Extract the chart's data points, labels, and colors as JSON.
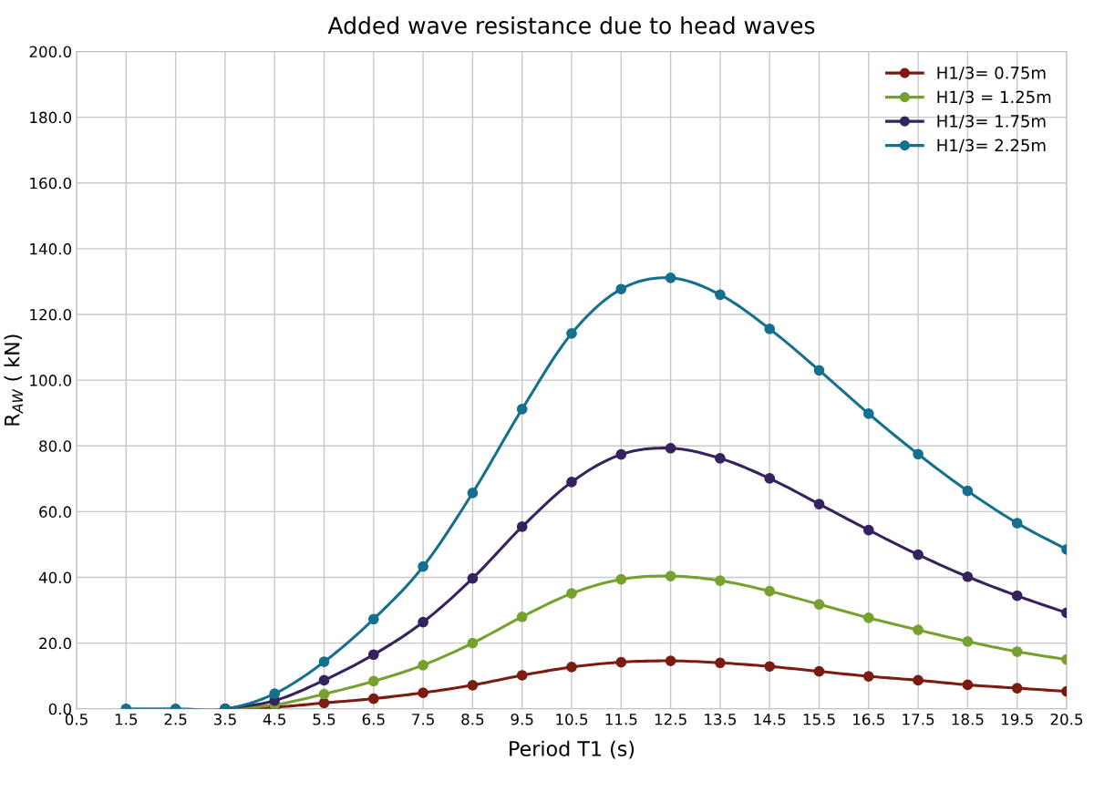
{
  "chart_data": {
    "type": "line",
    "title": "Added wave resistance due to head waves",
    "xlabel": "Period T1 (s)",
    "ylabel": "R$_{AW}$ ( kN)",
    "x": [
      1.5,
      2.5,
      3.5,
      4.5,
      5.5,
      6.5,
      7.5,
      8.5,
      9.5,
      10.5,
      11.5,
      12.5,
      13.5,
      14.5,
      15.5,
      16.5,
      17.5,
      18.5,
      19.5,
      20.5
    ],
    "series": [
      {
        "name": "H1/3= 0.75m",
        "color": "#7b1c12",
        "values": [
          null,
          null,
          0,
          0.5,
          1.8,
          3.1,
          4.9,
          7.2,
          10.2,
          12.7,
          14.2,
          14.6,
          14.0,
          12.9,
          11.4,
          9.9,
          8.7,
          7.3,
          6.3,
          5.3
        ]
      },
      {
        "name": "H1/3 = 1.25m",
        "color": "#76a12e",
        "values": [
          null,
          null,
          0,
          1.2,
          4.5,
          8.4,
          13.3,
          20.0,
          28.0,
          35.1,
          39.4,
          40.4,
          39.0,
          35.8,
          31.8,
          27.7,
          24.0,
          20.5,
          17.4,
          15.0
        ]
      },
      {
        "name": "H1/3= 1.75m",
        "color": "#35225e",
        "values": [
          null,
          null,
          0,
          2.5,
          8.7,
          16.5,
          26.4,
          39.7,
          55.4,
          69.0,
          77.4,
          79.3,
          76.2,
          70.1,
          62.3,
          54.4,
          46.9,
          40.2,
          34.4,
          29.2
        ]
      },
      {
        "name": "H1/3= 2.25m",
        "color": "#14708e",
        "values": [
          0,
          0,
          0,
          4.6,
          14.3,
          27.3,
          43.3,
          65.7,
          91.2,
          114.2,
          127.7,
          131.1,
          126.0,
          115.6,
          103.0,
          89.8,
          77.5,
          66.3,
          56.5,
          48.5
        ]
      }
    ],
    "xlim": [
      0.5,
      20.5
    ],
    "xticks": [
      0.5,
      1.5,
      2.5,
      3.5,
      4.5,
      5.5,
      6.5,
      7.5,
      8.5,
      9.5,
      10.5,
      11.5,
      12.5,
      13.5,
      14.5,
      15.5,
      16.5,
      17.5,
      18.5,
      19.5,
      20.5
    ],
    "ylim": [
      0,
      200
    ],
    "yticks": [
      {
        "value": 0,
        "label": "0.0"
      },
      {
        "value": 20,
        "label": "20.0"
      },
      {
        "value": 40,
        "label": "40.0"
      },
      {
        "value": 60,
        "label": "60.0"
      },
      {
        "value": 80,
        "label": "80.0"
      },
      {
        "value": 100,
        "label": "100.0"
      },
      {
        "value": 120,
        "label": "120.0"
      },
      {
        "value": 140,
        "label": "140.0"
      },
      {
        "value": 160,
        "label": "160.0"
      },
      {
        "value": 180,
        "label": "180.0"
      },
      {
        "value": 200,
        "label": "200.0"
      }
    ],
    "grid": true,
    "legend": "top right",
    "marker": "circle",
    "line_style": "solid"
  }
}
